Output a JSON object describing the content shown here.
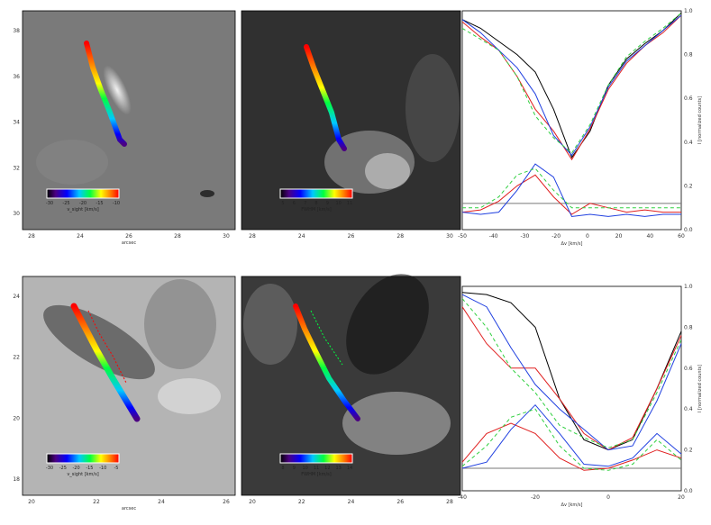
{
  "figure": {
    "rows": [
      {
        "id": "top",
        "panel_a": {
          "x_ticks": [
            "28",
            "24",
            "26",
            "28",
            "30"
          ],
          "y_ticks": [
            "38",
            "36",
            "34",
            "32",
            "30"
          ],
          "x_label": "arcsec",
          "colorbar": {
            "ticks": [
              "-30",
              "-25",
              "-20",
              "-15",
              "-10"
            ],
            "label": "v_sight [km/s]"
          }
        },
        "panel_b": {
          "x_ticks": [
            "28",
            "24",
            "26",
            "28",
            "30"
          ],
          "colorbar": {
            "ticks": [
              "5",
              "6",
              "7",
              "8",
              "9",
              "10",
              "11"
            ],
            "label": "FWHM [km/s]"
          }
        },
        "panel_c": {
          "x_ticks": [
            "-50",
            "-40",
            "-30",
            "-20",
            "0",
            "20",
            "40",
            "60"
          ],
          "y_ticks": [
            "1.0",
            "0.8",
            "0.6",
            "0.4",
            "0.2",
            "0.0"
          ],
          "x_label": "Δv [km/s]",
          "y_label": "I [normalized counts]"
        }
      },
      {
        "id": "bottom",
        "panel_a": {
          "x_ticks": [
            "20",
            "22",
            "24",
            "26"
          ],
          "y_ticks": [
            "24",
            "22",
            "20",
            "18"
          ],
          "x_label": "arcsec",
          "colorbar": {
            "ticks": [
              "-30",
              "-25",
              "-20",
              "-15",
              "-10",
              "-5"
            ],
            "label": "v_sight [km/s]"
          }
        },
        "panel_b": {
          "x_ticks": [
            "20",
            "22",
            "24",
            "26",
            "28"
          ],
          "colorbar": {
            "ticks": [
              "8",
              "9",
              "10",
              "11",
              "12",
              "13",
              "14"
            ],
            "label": "FWHM [km/s]"
          }
        },
        "panel_c": {
          "x_ticks": [
            "-40",
            "-20",
            "0",
            "20"
          ],
          "y_ticks": [
            "1.0",
            "0.8",
            "0.6",
            "0.4",
            "0.2",
            "0.0"
          ],
          "x_label": "Δv [km/s]",
          "y_label": "I [normalized counts]"
        }
      }
    ]
  },
  "chart_data": [
    {
      "type": "line",
      "x_range": [
        -60,
        60
      ],
      "ylim": [
        0,
        1
      ],
      "reference_level": 0.12,
      "series": [
        {
          "color": "#000000",
          "x": [
            -60,
            -50,
            -40,
            -30,
            -20,
            -10,
            0,
            10,
            20,
            30,
            40,
            50,
            60
          ],
          "y": [
            0.96,
            0.92,
            0.86,
            0.8,
            0.72,
            0.55,
            0.33,
            0.45,
            0.66,
            0.78,
            0.85,
            0.91,
            0.99
          ]
        },
        {
          "color": "#e02020",
          "x": [
            -60,
            -50,
            -40,
            -30,
            -20,
            -10,
            0,
            10,
            20,
            30,
            40,
            50,
            60
          ],
          "y": [
            0.95,
            0.88,
            0.82,
            0.7,
            0.55,
            0.45,
            0.32,
            0.46,
            0.64,
            0.76,
            0.84,
            0.9,
            0.98
          ]
        },
        {
          "color": "#2040e0",
          "x": [
            -60,
            -50,
            -40,
            -30,
            -20,
            -10,
            0,
            10,
            20,
            30,
            40,
            50,
            60
          ],
          "y": [
            0.96,
            0.9,
            0.82,
            0.74,
            0.62,
            0.43,
            0.34,
            0.47,
            0.65,
            0.77,
            0.84,
            0.91,
            0.98
          ]
        },
        {
          "color": "#30d040",
          "dash": true,
          "x": [
            -60,
            -50,
            -40,
            -30,
            -20,
            -10,
            0,
            10,
            20,
            30,
            40,
            50,
            60
          ],
          "y": [
            0.92,
            0.87,
            0.82,
            0.7,
            0.52,
            0.42,
            0.35,
            0.48,
            0.66,
            0.79,
            0.86,
            0.92,
            0.99
          ]
        },
        {
          "color": "#e02020",
          "x": [
            -60,
            -50,
            -40,
            -30,
            -20,
            -10,
            0,
            10,
            20,
            30,
            40,
            50,
            60
          ],
          "y": [
            0.08,
            0.09,
            0.13,
            0.2,
            0.25,
            0.15,
            0.07,
            0.12,
            0.1,
            0.08,
            0.09,
            0.08,
            0.08
          ]
        },
        {
          "color": "#2040e0",
          "x": [
            -60,
            -50,
            -40,
            -30,
            -20,
            -10,
            0,
            10,
            20,
            30,
            40,
            50,
            60
          ],
          "y": [
            0.08,
            0.07,
            0.08,
            0.18,
            0.3,
            0.24,
            0.06,
            0.07,
            0.06,
            0.07,
            0.06,
            0.07,
            0.07
          ]
        },
        {
          "color": "#30d040",
          "dash": true,
          "x": [
            -60,
            -50,
            -40,
            -30,
            -20,
            -10,
            0,
            10,
            20,
            30,
            40,
            50,
            60
          ],
          "y": [
            0.1,
            0.1,
            0.15,
            0.25,
            0.28,
            0.18,
            0.1,
            0.1,
            0.1,
            0.1,
            0.1,
            0.1,
            0.1
          ]
        }
      ]
    },
    {
      "type": "line",
      "x_range": [
        -55,
        35
      ],
      "ylim": [
        0,
        1
      ],
      "reference_level": 0.11,
      "series": [
        {
          "color": "#000000",
          "x": [
            -55,
            -45,
            -35,
            -25,
            -15,
            -5,
            5,
            15,
            25,
            35
          ],
          "y": [
            0.97,
            0.96,
            0.92,
            0.8,
            0.45,
            0.25,
            0.2,
            0.25,
            0.5,
            0.78
          ]
        },
        {
          "color": "#e02020",
          "x": [
            -55,
            -45,
            -35,
            -25,
            -15,
            -5,
            5,
            15,
            25,
            35
          ],
          "y": [
            0.9,
            0.72,
            0.6,
            0.6,
            0.45,
            0.28,
            0.2,
            0.26,
            0.5,
            0.76
          ]
        },
        {
          "color": "#2040e0",
          "x": [
            -55,
            -45,
            -35,
            -25,
            -15,
            -5,
            5,
            15,
            25,
            35
          ],
          "y": [
            0.96,
            0.9,
            0.7,
            0.52,
            0.4,
            0.3,
            0.2,
            0.22,
            0.44,
            0.72
          ]
        },
        {
          "color": "#30d040",
          "dash": true,
          "x": [
            -55,
            -45,
            -35,
            -25,
            -15,
            -5,
            5,
            15,
            25,
            35
          ],
          "y": [
            0.94,
            0.8,
            0.6,
            0.48,
            0.32,
            0.26,
            0.21,
            0.25,
            0.48,
            0.74
          ]
        },
        {
          "color": "#e02020",
          "x": [
            -55,
            -45,
            -35,
            -25,
            -15,
            -5,
            5,
            15,
            25,
            35
          ],
          "y": [
            0.14,
            0.28,
            0.33,
            0.28,
            0.16,
            0.1,
            0.11,
            0.15,
            0.2,
            0.16
          ]
        },
        {
          "color": "#2040e0",
          "x": [
            -55,
            -45,
            -35,
            -25,
            -15,
            -5,
            5,
            15,
            25,
            35
          ],
          "y": [
            0.11,
            0.14,
            0.3,
            0.42,
            0.28,
            0.13,
            0.12,
            0.16,
            0.28,
            0.18
          ]
        },
        {
          "color": "#30d040",
          "dash": true,
          "x": [
            -55,
            -45,
            -35,
            -25,
            -15,
            -5,
            5,
            15,
            25,
            35
          ],
          "y": [
            0.12,
            0.22,
            0.36,
            0.4,
            0.22,
            0.11,
            0.1,
            0.13,
            0.25,
            0.15
          ]
        }
      ]
    }
  ]
}
